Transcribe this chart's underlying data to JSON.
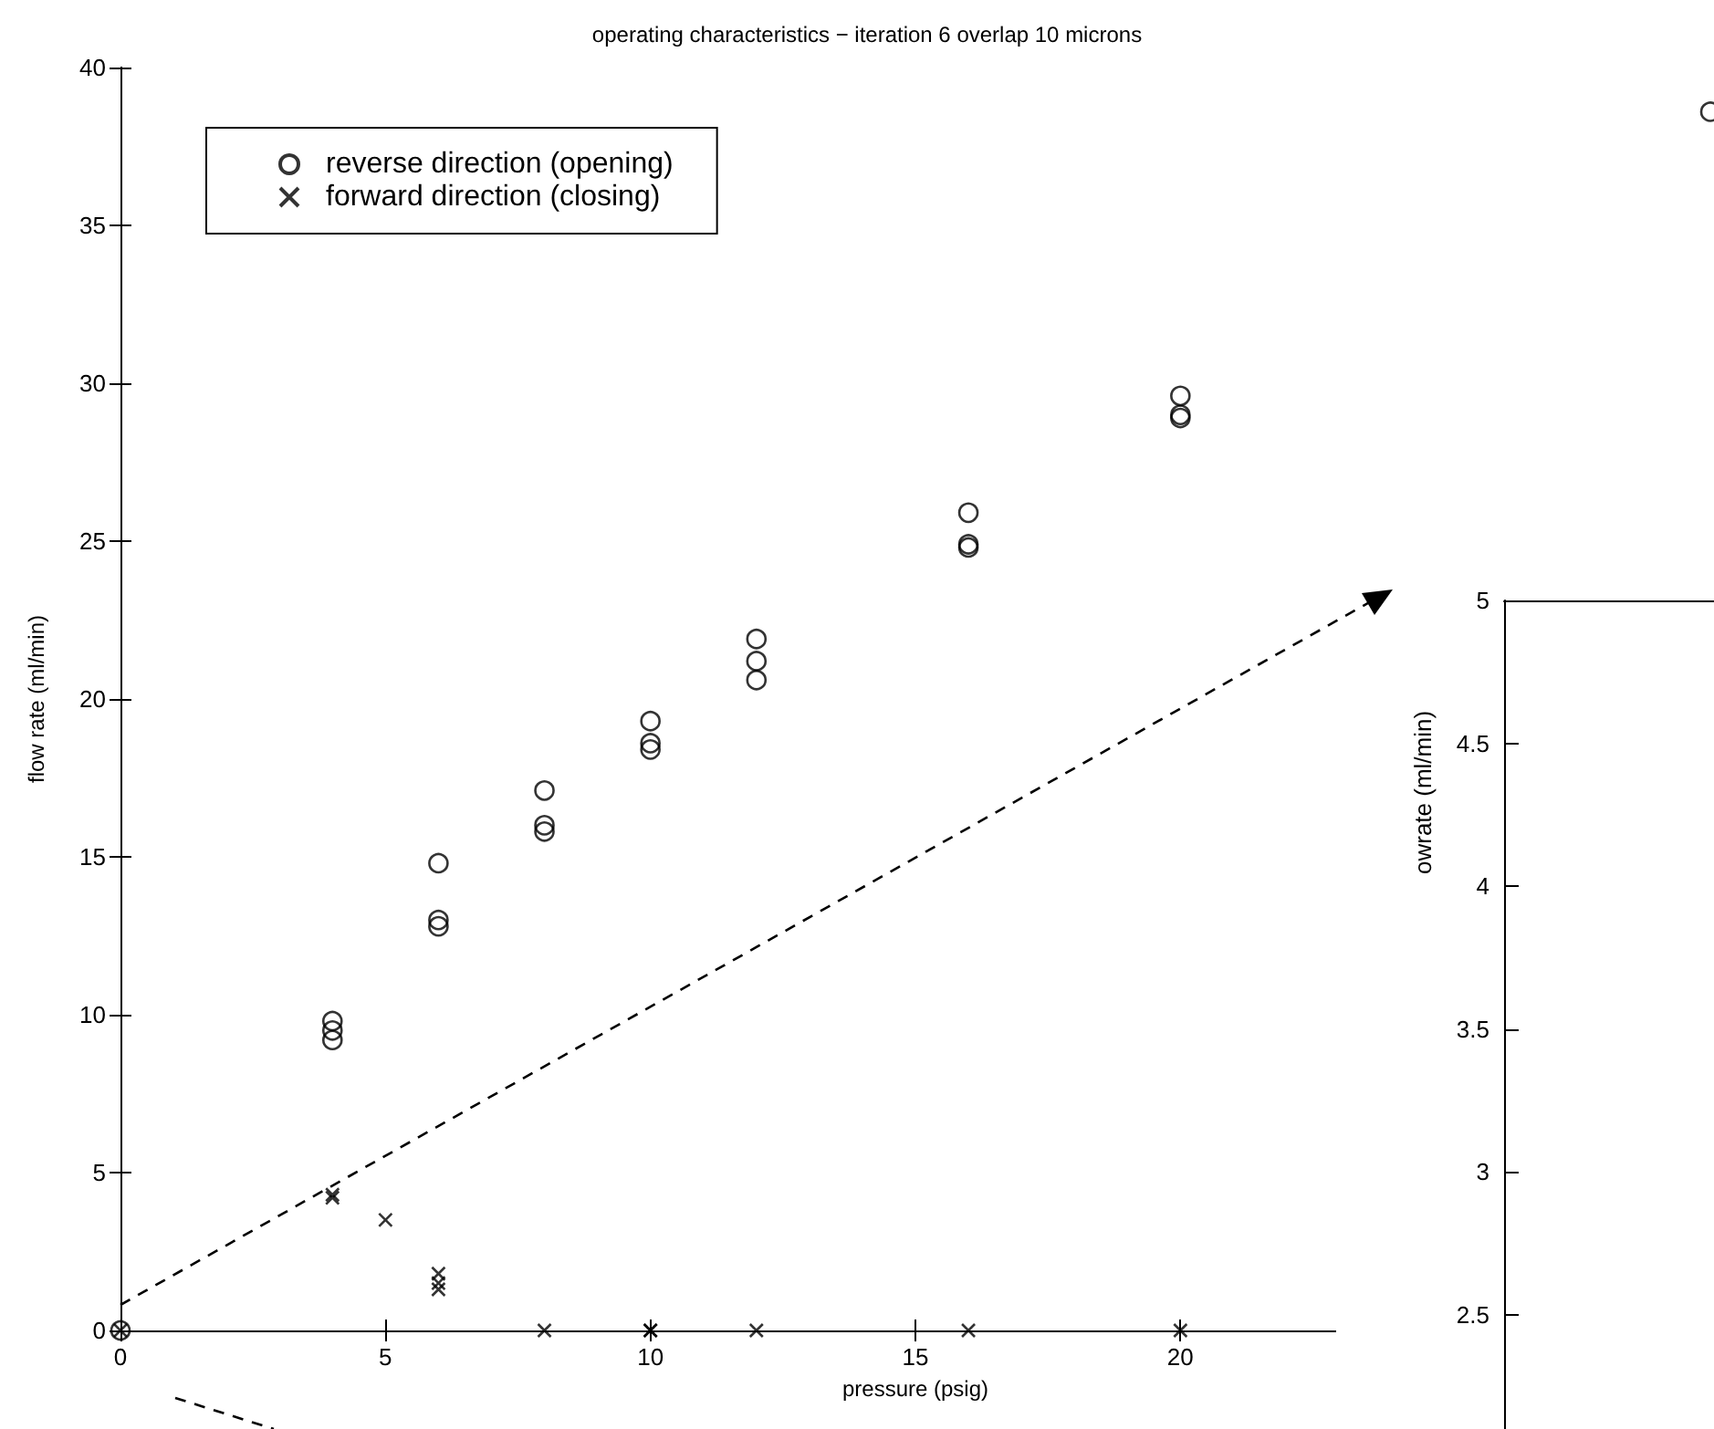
{
  "chart_data": [
    {
      "type": "scatter",
      "title": "operating characteristics − iteration 6 overlap 10 microns",
      "xlabel": "pressure (psig)",
      "ylabel": "flow rate (ml/min)",
      "xlim": [
        0,
        30
      ],
      "ylim": [
        0,
        40
      ],
      "xticks": [
        0,
        5,
        10,
        15,
        20,
        {
          "value": 25,
          "label": null
        }
      ],
      "yticks": [
        0,
        5,
        10,
        15,
        20,
        25,
        30,
        35,
        40
      ],
      "grid": false,
      "legend": "top left",
      "series": [
        {
          "name": "reverse direction (opening)",
          "color": "#000000",
          "marker": "circle",
          "x": [
            0,
            4,
            4,
            4,
            6,
            6,
            6,
            8,
            8,
            8,
            10,
            10,
            10,
            12,
            12,
            12,
            16,
            16,
            16,
            20,
            20,
            20,
            30
          ],
          "values": [
            0,
            9.8,
            9.5,
            9.2,
            14.8,
            13.0,
            12.8,
            17.1,
            16.0,
            15.8,
            19.3,
            18.6,
            18.4,
            21.9,
            21.2,
            20.6,
            25.9,
            24.9,
            24.8,
            29.6,
            29.0,
            28.9,
            38.6
          ]
        },
        {
          "name": "forward direction (closing)",
          "color": "#000000",
          "marker": "cross",
          "x": [
            0,
            4,
            4,
            5,
            6,
            6,
            6,
            8,
            10,
            10,
            12,
            16,
            20
          ],
          "values": [
            0,
            4.3,
            4.2,
            3.5,
            1.8,
            1.5,
            1.3,
            0,
            0,
            0,
            0,
            0,
            0
          ]
        }
      ]
    },
    {
      "type": "scatter",
      "ylabel": "owrate (ml/min)",
      "ylim": [
        2.1,
        5
      ],
      "yticks": [
        2.5,
        3,
        3.5,
        4,
        4.5,
        5
      ],
      "categories": [
        null
      ],
      "values": [
        null
      ]
    }
  ]
}
